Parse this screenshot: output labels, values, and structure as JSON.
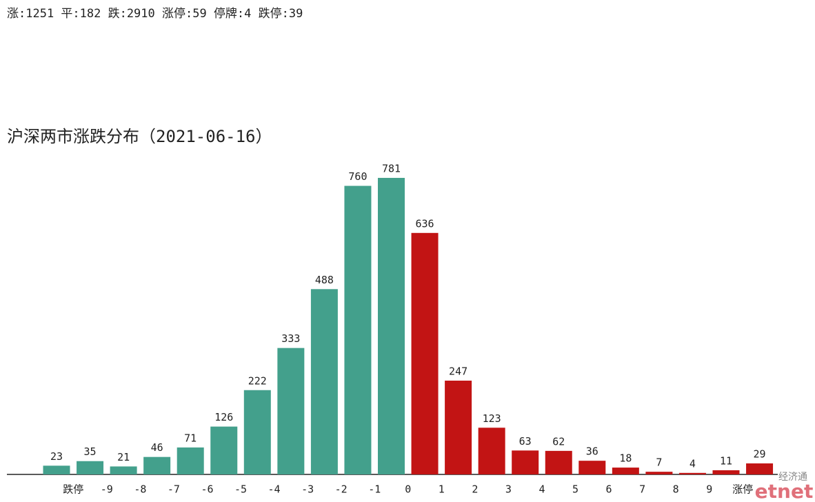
{
  "summary": "涨:1251 平:182 跌:2910 涨停:59 停牌:4 跌停:39",
  "chart_data": {
    "type": "bar",
    "title": "沪深两市涨跌分布（2021-06-16）",
    "edge_labels": [
      null,
      "跌停",
      "-9",
      "-8",
      "-7",
      "-6",
      "-5",
      "-4",
      "-3",
      "-2",
      "-1",
      "0",
      "1",
      "2",
      "3",
      "4",
      "5",
      "6",
      "7",
      "8",
      "9",
      "涨停",
      null
    ],
    "values": [
      23,
      35,
      21,
      46,
      71,
      126,
      222,
      333,
      488,
      760,
      781,
      636,
      247,
      123,
      63,
      62,
      36,
      18,
      7,
      4,
      11,
      29
    ],
    "colors": [
      "#43a08c",
      "#43a08c",
      "#43a08c",
      "#43a08c",
      "#43a08c",
      "#43a08c",
      "#43a08c",
      "#43a08c",
      "#43a08c",
      "#43a08c",
      "#43a08c",
      "#c21414",
      "#c21414",
      "#c21414",
      "#c21414",
      "#c21414",
      "#c21414",
      "#c21414",
      "#c21414",
      "#c21414",
      "#c21414",
      "#c21414"
    ],
    "ylim": [
      0,
      800
    ]
  },
  "watermark": {
    "cn": "经济通",
    "en": "etnet"
  }
}
